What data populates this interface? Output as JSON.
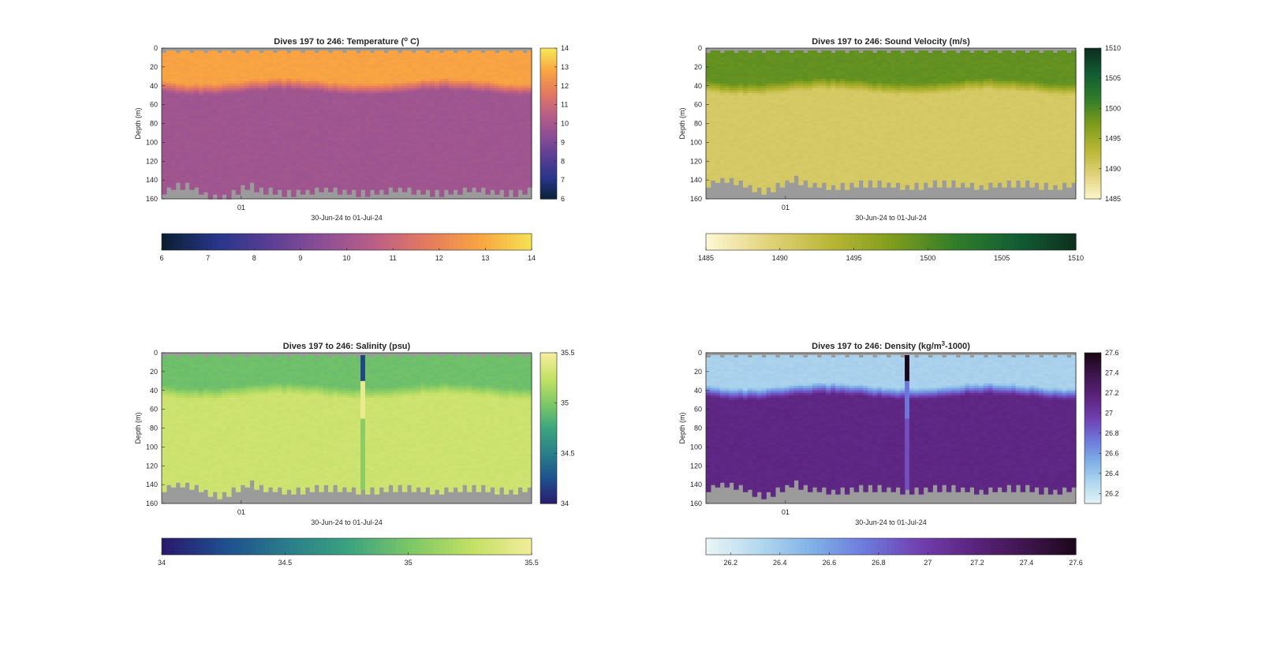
{
  "figure": {
    "background": "#ffffff",
    "nodata_color": "#9b9b9b"
  },
  "chart_data": [
    {
      "id": "temperature",
      "type": "heatmap",
      "title": "Dives 197 to 246: Temperature (",
      "title_sup": "o",
      "title_end": " C)",
      "ylabel": "Depth (m)",
      "xlabel": "30-Jun-24 to 01-Jul-24",
      "x_tick_labels": [
        "01"
      ],
      "y_ticks": [
        0,
        20,
        40,
        60,
        80,
        100,
        120,
        140,
        160
      ],
      "ylim": [
        0,
        160
      ],
      "y_reversed": true,
      "colorbar_ticks": [
        6,
        7,
        8,
        9,
        10,
        11,
        12,
        13,
        14
      ],
      "clim": [
        6,
        14
      ],
      "colormap": [
        "#0b1f33",
        "#27358a",
        "#5a3e94",
        "#8c4e95",
        "#bb5f86",
        "#e57b5f",
        "#f8a542",
        "#f5e554"
      ],
      "layers": {
        "surface_value": 12.8,
        "thermocline_depth": 40,
        "deep_value": 9.9,
        "bottom_depth": 155
      },
      "anomaly": null
    },
    {
      "id": "sound_velocity",
      "type": "heatmap",
      "title": "Dives 197 to 246: Sound Velocity (m/s)",
      "ylabel": "Depth (m)",
      "xlabel": "30-Jun-24 to 01-Jul-24",
      "x_tick_labels": [
        "01"
      ],
      "y_ticks": [
        0,
        20,
        40,
        60,
        80,
        100,
        120,
        140,
        160
      ],
      "ylim": [
        0,
        160
      ],
      "y_reversed": true,
      "colorbar_ticks": [
        1485,
        1490,
        1495,
        1500,
        1505,
        1510
      ],
      "clim": [
        1485,
        1510
      ],
      "colormap": [
        "#fdf7d1",
        "#e1d27a",
        "#b9b636",
        "#7e9c1c",
        "#327d2a",
        "#125e33",
        "#0d2e1e"
      ],
      "layers": {
        "surface_value": 1499,
        "thermocline_depth": 40,
        "deep_value": 1490.5,
        "bottom_depth": 148
      },
      "anomaly": null
    },
    {
      "id": "salinity",
      "type": "heatmap",
      "title": "Dives 197 to 246: Salinity (psu)",
      "ylabel": "Depth (m)",
      "xlabel": "30-Jun-24 to 01-Jul-24",
      "x_tick_labels": [
        "01"
      ],
      "y_ticks": [
        0,
        20,
        40,
        60,
        80,
        100,
        120,
        140,
        160
      ],
      "ylim": [
        0,
        160
      ],
      "y_reversed": true,
      "colorbar_ticks": [
        34,
        34.5,
        35,
        35.5
      ],
      "clim": [
        34,
        35.5
      ],
      "colormap": [
        "#2a1a6d",
        "#1e4f8e",
        "#2a7d8a",
        "#3ba37f",
        "#7cc766",
        "#c2e064",
        "#f5ed9c"
      ],
      "layers": {
        "surface_value": 34.95,
        "thermocline_depth": 40,
        "deep_value": 35.3,
        "bottom_depth": 148
      },
      "anomaly": {
        "dive_index": 43,
        "values": [
          34.2,
          35.45,
          35.05
        ]
      }
    },
    {
      "id": "density",
      "type": "heatmap",
      "title": "Dives 197 to 246: Density (kg/m",
      "title_sup": "3",
      "title_end": "-1000)",
      "ylabel": "Depth (m)",
      "xlabel": "30-Jun-24 to 01-Jul-24",
      "x_tick_labels": [
        "01"
      ],
      "y_ticks": [
        0,
        20,
        40,
        60,
        80,
        100,
        120,
        140,
        160
      ],
      "ylim": [
        0,
        160
      ],
      "y_reversed": true,
      "colorbar_ticks": [
        26.2,
        26.4,
        26.6,
        26.8,
        27,
        27.2,
        27.4,
        27.6
      ],
      "clim": [
        26.1,
        27.6
      ],
      "colormap": [
        "#e8f4f6",
        "#b2d8ee",
        "#7fb0e6",
        "#6d78dc",
        "#7140b0",
        "#5c247e",
        "#3f154f",
        "#1c0718"
      ],
      "layers": {
        "surface_value": 26.35,
        "thermocline_depth": 40,
        "deep_value": 27.15,
        "bottom_depth": 148
      },
      "anomaly": {
        "dive_index": 43,
        "values": [
          27.6,
          26.75,
          26.9
        ]
      }
    }
  ]
}
